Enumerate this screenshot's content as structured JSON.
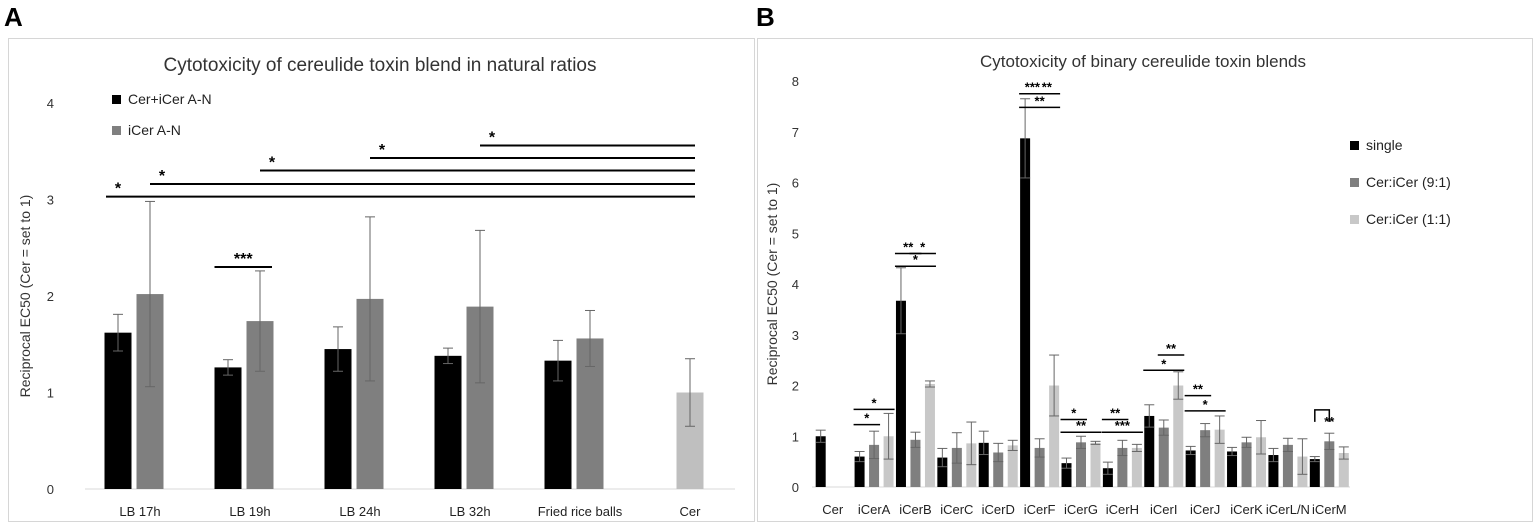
{
  "panel_a": {
    "letter": "A"
  },
  "panel_b": {
    "letter": "B"
  },
  "chart_data": [
    {
      "type": "bar",
      "title": "Cytotoxicity of cereulide toxin blend in natural ratios",
      "xlabel": "",
      "ylabel": "Reciprocal EC50 (Cer = set to 1)",
      "ylim": [
        0,
        4
      ],
      "yticks": [
        "0",
        "1",
        "2",
        "3",
        "4"
      ],
      "grid": false,
      "legend_position": "top-left",
      "categories": [
        "LB 17h",
        "LB 19h",
        "LB 24h",
        "LB 32h",
        "Fried rice balls",
        "Cer"
      ],
      "series": [
        {
          "name": "Cer+iCer A-N",
          "color": "#000000",
          "values": [
            1.62,
            1.26,
            1.45,
            1.38,
            1.33,
            null
          ],
          "errors": [
            0.19,
            0.08,
            0.23,
            0.08,
            0.21,
            null
          ]
        },
        {
          "name": "iCer A-N",
          "color": "#7f7f7f",
          "values": [
            2.02,
            1.74,
            1.97,
            1.89,
            1.56,
            null
          ],
          "errors": [
            0.96,
            0.52,
            0.85,
            0.79,
            0.29,
            null
          ]
        },
        {
          "name": "Cer",
          "color": "#bfbfbf",
          "in_legend": false,
          "values": [
            null,
            null,
            null,
            null,
            null,
            1.0
          ],
          "errors": [
            null,
            null,
            null,
            null,
            null,
            0.35
          ]
        }
      ],
      "significance": [
        {
          "label": "***",
          "from": [
            "LB 19h",
            0
          ],
          "to": [
            "LB 19h",
            1
          ],
          "y": 2.3
        },
        {
          "label": "*",
          "from": [
            "LB 17h",
            0
          ],
          "to": [
            "Cer",
            0
          ],
          "y": 3.03
        },
        {
          "label": "*",
          "from": [
            "LB 17h",
            1
          ],
          "to": [
            "Cer",
            0
          ],
          "y": 3.16
        },
        {
          "label": "*",
          "from": [
            "LB 19h",
            1
          ],
          "to": [
            "Cer",
            0
          ],
          "y": 3.3
        },
        {
          "label": "*",
          "from": [
            "LB 24h",
            1
          ],
          "to": [
            "Cer",
            0
          ],
          "y": 3.43
        },
        {
          "label": "*",
          "from": [
            "LB 32h",
            1
          ],
          "to": [
            "Cer",
            0
          ],
          "y": 3.56
        }
      ]
    },
    {
      "type": "bar",
      "title": "Cytotoxicity of binary cereulide toxin blends",
      "xlabel": "",
      "ylabel": "Reciprocal EC50 (Cer = set to 1)",
      "ylim": [
        0,
        8
      ],
      "yticks": [
        "0",
        "1",
        "2",
        "3",
        "4",
        "5",
        "6",
        "7",
        "8"
      ],
      "grid": false,
      "legend_position": "right",
      "categories": [
        "Cer",
        "iCerA",
        "iCerB",
        "iCerC",
        "iCerD",
        "iCerF",
        "iCerG",
        "iCerH",
        "iCerI",
        "iCerJ",
        "iCerK",
        "iCerL/N",
        "iCerM"
      ],
      "series": [
        {
          "name": "single",
          "color": "#000000",
          "values": [
            1.0,
            0.6,
            3.67,
            0.58,
            0.87,
            6.87,
            0.47,
            0.37,
            1.4,
            0.72,
            0.7,
            0.63,
            0.55
          ],
          "errors": [
            0.12,
            0.1,
            0.65,
            0.18,
            0.23,
            0.78,
            0.1,
            0.12,
            0.22,
            0.08,
            0.08,
            0.13,
            0.05
          ]
        },
        {
          "name": "Cer:iCer (9:1)",
          "color": "#7f7f7f",
          "values": [
            null,
            0.83,
            0.93,
            0.77,
            0.68,
            0.77,
            0.88,
            0.77,
            1.17,
            1.12,
            0.88,
            0.83,
            0.9
          ],
          "errors": [
            null,
            0.27,
            0.15,
            0.3,
            0.18,
            0.18,
            0.12,
            0.15,
            0.15,
            0.13,
            0.1,
            0.13,
            0.16
          ]
        },
        {
          "name": "Cer:iCer (1:1)",
          "color": "#c8c8c8",
          "values": [
            null,
            1.0,
            2.03,
            0.86,
            0.82,
            2.0,
            0.87,
            0.77,
            2.0,
            1.13,
            0.98,
            0.6,
            0.67
          ],
          "errors": [
            null,
            0.45,
            0.06,
            0.42,
            0.1,
            0.6,
            0.03,
            0.07,
            0.27,
            0.27,
            0.33,
            0.35,
            0.12
          ]
        }
      ],
      "significance": [
        {
          "label": "*",
          "cat": "iCerA",
          "from": 0,
          "to": 1,
          "y": 1.23
        },
        {
          "label": "*",
          "cat": "iCerA",
          "from": 0,
          "to": 2,
          "y": 1.53
        },
        {
          "label": "**",
          "cat": "iCerB",
          "from": 0,
          "to": 1,
          "y": 4.6
        },
        {
          "label": "*",
          "cat": "iCerB",
          "from": 1,
          "to": 2,
          "y": 4.6
        },
        {
          "label": "*",
          "cat": "iCerB",
          "from": 0,
          "to": 2,
          "y": 4.35
        },
        {
          "label": "***",
          "cat": "iCerF",
          "from": 0,
          "to": 1,
          "y": 7.75
        },
        {
          "label": "**",
          "cat": "iCerF",
          "from": 1,
          "to": 2,
          "y": 7.75
        },
        {
          "label": "**",
          "cat": "iCerF",
          "from": 0,
          "to": 2,
          "y": 7.48
        },
        {
          "label": "*",
          "cat": "iCerG",
          "from": 0,
          "to": 1,
          "y": 1.33
        },
        {
          "label": "**",
          "cat": "iCerG",
          "from": 0,
          "to": 2,
          "y": 1.08
        },
        {
          "label": "**",
          "cat": "iCerH",
          "from": 0,
          "to": 1,
          "y": 1.33
        },
        {
          "label": "***",
          "cat": "iCerH",
          "from": 0,
          "to": 2,
          "y": 1.08
        },
        {
          "label": "**",
          "cat": "iCerI",
          "from": 1,
          "to": 2,
          "y": 2.6
        },
        {
          "label": "*",
          "cat": "iCerI",
          "from": 0,
          "to": 2,
          "y": 2.3
        },
        {
          "label": "**",
          "cat": "iCerJ",
          "from": 0,
          "to": 1,
          "y": 1.8
        },
        {
          "label": "*",
          "cat": "iCerJ",
          "from": 0,
          "to": 2,
          "y": 1.5
        },
        {
          "label": "**",
          "cat": "iCerM",
          "from": 0,
          "to": 1,
          "y": 1.52,
          "bracket": true
        }
      ]
    }
  ]
}
